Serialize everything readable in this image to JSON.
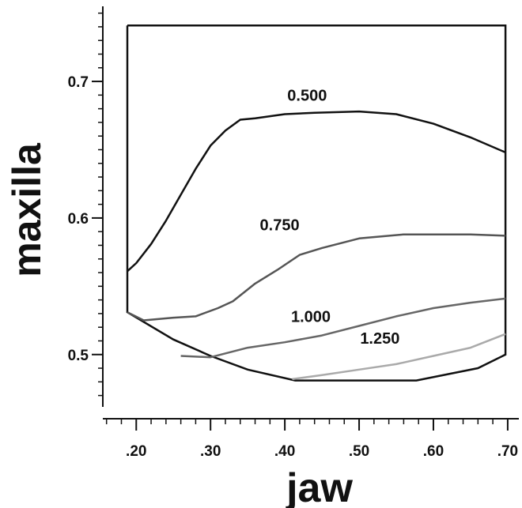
{
  "chart_data": {
    "type": "line",
    "title": "",
    "xlabel": "jaw",
    "ylabel": "maxilla",
    "xlim": [
      0.155,
      0.715
    ],
    "ylim": [
      0.453,
      0.755
    ],
    "x_ticks": [
      {
        "value": 0.2,
        "label": ".20"
      },
      {
        "value": 0.3,
        "label": ".30"
      },
      {
        "value": 0.4,
        "label": ".40"
      },
      {
        "value": 0.5,
        "label": ".50"
      },
      {
        "value": 0.6,
        "label": ".60"
      },
      {
        "value": 0.7,
        "label": ".70"
      }
    ],
    "y_ticks": [
      {
        "value": 0.5,
        "label": "0.5"
      },
      {
        "value": 0.6,
        "label": "0.6"
      },
      {
        "value": 0.7,
        "label": "0.7"
      }
    ],
    "grid": false,
    "legend": "none",
    "region_boundary": {
      "color": "#111111",
      "points": [
        [
          0.188,
          0.741
        ],
        [
          0.697,
          0.741
        ],
        [
          0.697,
          0.5
        ],
        [
          0.66,
          0.49
        ],
        [
          0.577,
          0.481
        ],
        [
          0.414,
          0.481
        ],
        [
          0.35,
          0.489
        ],
        [
          0.3,
          0.499
        ],
        [
          0.25,
          0.511
        ],
        [
          0.188,
          0.531
        ],
        [
          0.188,
          0.741
        ]
      ]
    },
    "series": [
      {
        "label": "0.500",
        "color": "#111111",
        "label_at": [
          0.43,
          0.686
        ],
        "points": [
          [
            0.188,
            0.561
          ],
          [
            0.2,
            0.567
          ],
          [
            0.22,
            0.581
          ],
          [
            0.24,
            0.598
          ],
          [
            0.26,
            0.617
          ],
          [
            0.28,
            0.636
          ],
          [
            0.3,
            0.653
          ],
          [
            0.32,
            0.664
          ],
          [
            0.34,
            0.672
          ],
          [
            0.36,
            0.673
          ],
          [
            0.4,
            0.676
          ],
          [
            0.44,
            0.677
          ],
          [
            0.5,
            0.678
          ],
          [
            0.55,
            0.676
          ],
          [
            0.6,
            0.669
          ],
          [
            0.65,
            0.659
          ],
          [
            0.697,
            0.648
          ]
        ]
      },
      {
        "label": "0.750",
        "color": "#555555",
        "label_at": [
          0.393,
          0.591
        ],
        "points": [
          [
            0.188,
            0.531
          ],
          [
            0.21,
            0.525
          ],
          [
            0.25,
            0.527
          ],
          [
            0.28,
            0.528
          ],
          [
            0.31,
            0.534
          ],
          [
            0.33,
            0.539
          ],
          [
            0.36,
            0.552
          ],
          [
            0.39,
            0.562
          ],
          [
            0.42,
            0.573
          ],
          [
            0.45,
            0.578
          ],
          [
            0.5,
            0.585
          ],
          [
            0.56,
            0.588
          ],
          [
            0.6,
            0.588
          ],
          [
            0.65,
            0.588
          ],
          [
            0.697,
            0.587
          ]
        ]
      },
      {
        "label": "1.000",
        "color": "#666666",
        "label_at": [
          0.435,
          0.524
        ],
        "points": [
          [
            0.26,
            0.499
          ],
          [
            0.3,
            0.498
          ],
          [
            0.35,
            0.505
          ],
          [
            0.4,
            0.509
          ],
          [
            0.45,
            0.514
          ],
          [
            0.5,
            0.521
          ],
          [
            0.55,
            0.528
          ],
          [
            0.6,
            0.534
          ],
          [
            0.65,
            0.538
          ],
          [
            0.697,
            0.541
          ]
        ]
      },
      {
        "label": "1.250",
        "color": "#aaaaaa",
        "label_at": [
          0.528,
          0.508
        ],
        "points": [
          [
            0.41,
            0.482
          ],
          [
            0.45,
            0.485
          ],
          [
            0.5,
            0.489
          ],
          [
            0.55,
            0.493
          ],
          [
            0.6,
            0.499
          ],
          [
            0.65,
            0.505
          ],
          [
            0.697,
            0.515
          ]
        ]
      }
    ]
  }
}
